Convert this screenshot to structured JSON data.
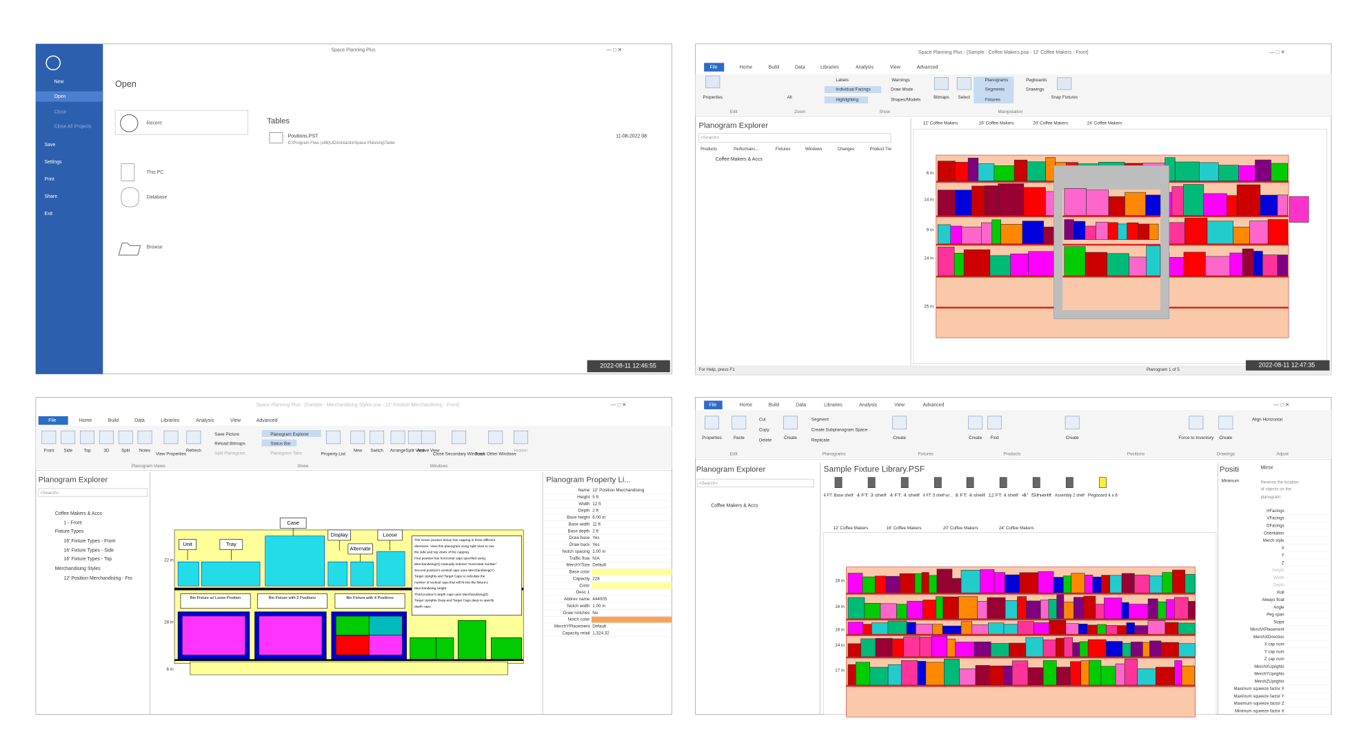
{
  "windows": [
    {
      "title": "Space Planning Plus",
      "sidebar": [
        "New",
        "Open",
        "Close",
        "Close All Projects",
        "Save",
        "Settings",
        "Print",
        "Share",
        "Exit"
      ],
      "heading": "Open",
      "locations": [
        "Recent",
        "This PC",
        "Database",
        "Browse"
      ],
      "tables_heading": "Tables",
      "file": {
        "name": "Positions.PST",
        "path": "C:\\Program Files (x86)\\JDA\\Intactix\\Space Planning\\Table",
        "date": "11-08-2022 08:"
      },
      "timestamp": "2022-08-11 12:46:55"
    },
    {
      "title": "Space Planning Plus - [Sample - Coffee Makers.psa - 12' Coffee Makers - Front]",
      "tabs": [
        "File",
        "Home",
        "Build",
        "Data",
        "Libraries",
        "Analysis",
        "View",
        "Advanced"
      ],
      "buttons": [
        "Properties",
        "Labels",
        "Warnings",
        "Individual Facings",
        "Draw Mode",
        "Highlighting",
        "Shapes/Models",
        "Bitmaps",
        "Select",
        "Planograms",
        "Pegboards",
        "Segments",
        "Drawings",
        "Fixtures",
        "Snap Fixtures",
        "All"
      ],
      "groups": [
        "Edit",
        "Zoom",
        "Show",
        "Manipulation"
      ],
      "explorer": "Planogram Explorer",
      "search": "<Search>",
      "explorer_tabs": [
        "Products",
        "Performanc...",
        "Fixtures",
        "Windows",
        "Changes",
        "Product Tre"
      ],
      "tree": [
        "Coffee Makers & Accs"
      ],
      "doc_tabs": [
        "12' Coffee Makers",
        "16' Coffee Makers",
        "20' Coffee Makers",
        "24' Coffee Makers"
      ],
      "axis_labels": [
        "6 in",
        "14 in",
        "9 in",
        "14 in",
        "25 in"
      ],
      "status": "For Help, press F1",
      "status_right": "Planogram 1 of 5",
      "timestamp": "2022-08-11 12:47:35"
    },
    {
      "title": "Space Planning Plus - [Sample - Merchandising Styles.psa - 12' Position Merchandising - Front]",
      "tabs": [
        "File",
        "Home",
        "Build",
        "Data",
        "Libraries",
        "Analysis",
        "View",
        "Advanced"
      ],
      "buttons": [
        "Front",
        "Side",
        "Top",
        "3D",
        "Split",
        "Notes",
        "View Properties",
        "Refresh",
        "Save Picture",
        "Reload Bitmaps",
        "Split Planogram",
        "Planogram Explorer",
        "Status Bar",
        "Planogram Tabs",
        "Property List",
        "New",
        "Switch",
        "Arrange",
        "Split View",
        "Active View",
        "Close Secondary Windows",
        "Track Other Windows",
        "Hidden"
      ],
      "groups": [
        "Planogram Views",
        "Show",
        "Windows"
      ],
      "explorer": "Planogram Explorer",
      "search": "<Search>",
      "tree": [
        "Coffee Makers & Accs",
        "1 - Front",
        "Fixture Types",
        "16' Fixture Types - Front",
        "16' Fixture Types - Side",
        "16' Fixture Types - Top",
        "Merchandising Styles",
        "12' Position Merchandising - Fro"
      ],
      "styles": [
        "Unit",
        "Tray",
        "Case",
        "Display",
        "Alternate",
        "Loose"
      ],
      "fixture_notes": [
        "Bin Fixture w/ Loose Position",
        "Bin Fixture with 2 Positions",
        "Bin Fixture with 4 Positions"
      ],
      "notes": [
        "The Green product below has capping in three different",
        "directions. View this planogram using Split View to see",
        "the side and top views of the capping.",
        "First position has horizontal caps specified using",
        "Merchandising(X) manually entered \"Horizontal number\"",
        "Second position's vertical caps uses Merchandising(Y)",
        "Target Uprights and Target Caps to calculate the",
        "number of vertical caps that will fit into the fixture's",
        "Merchandising Height",
        "Third position's depth caps uses Merchandising(Z)",
        "Target Uprights Deep and Target Caps deep to specify",
        "depth caps."
      ],
      "axis_labels": [
        "22 in",
        "28 in",
        "6 in"
      ],
      "property_title": "Planogram Property Li...",
      "properties": [
        {
          "name": "Name",
          "value": "12' Position Merchandising"
        },
        {
          "name": "Height",
          "value": "5 ft"
        },
        {
          "name": "Width",
          "value": "12 ft"
        },
        {
          "name": "Depth",
          "value": "2 ft"
        },
        {
          "name": "Base height",
          "value": "6.00 in"
        },
        {
          "name": "Base width",
          "value": "11 ft"
        },
        {
          "name": "Base depth",
          "value": "2 ft"
        },
        {
          "name": "Draw base",
          "value": "Yes"
        },
        {
          "name": "Draw back",
          "value": "Yes"
        },
        {
          "name": "Notch spacing",
          "value": "1.00 in"
        },
        {
          "name": "Traffic flow",
          "value": "N/A"
        },
        {
          "name": "MerchYSize",
          "value": "Default"
        },
        {
          "name": "Base color",
          "swatch": "#ffff99"
        },
        {
          "name": "Capacity",
          "value": "228"
        },
        {
          "name": "Color",
          "swatch": "#ffff99"
        },
        {
          "name": "Desc 1"
        },
        {
          "name": "Abbrev name",
          "value": "444005"
        },
        {
          "name": "Notch width",
          "value": "1.00 in"
        },
        {
          "name": "Draw notches",
          "value": "No"
        },
        {
          "name": "Notch color",
          "swatch": "#f4a460"
        },
        {
          "name": "MerchYPlacement",
          "value": "Default"
        },
        {
          "name": "Capacity retail",
          "value": "1,324.32"
        }
      ]
    },
    {
      "tabs": [
        "File",
        "Home",
        "Build",
        "Data",
        "Libraries",
        "Analysis",
        "View",
        "Advanced"
      ],
      "buttons": [
        "Properties",
        "Paste",
        "Cut",
        "Copy",
        "Delete",
        "Create",
        "Segment",
        "Create Subplanogram Space",
        "Replicate",
        "Create",
        "Create",
        "Find",
        "Create",
        "Force to Inventory",
        "Create",
        "Align Horizontal"
      ],
      "groups": [
        "Edit",
        "Planograms",
        "Fixtures",
        "Products",
        "Positions",
        "Drawings",
        "Adjust"
      ],
      "explorer": "Planogram Explorer",
      "search": "<Search>",
      "tree": [
        "Coffee Makers & Accs"
      ],
      "library": "Sample Fixture Library.PSF",
      "fixtures": [
        "4 FT: Base shelf",
        "4 FT: 3 shelf",
        "4 FT: 4 shelf",
        "4 FT: 5 shelf w/...",
        "8 FT: 4 shelf",
        "12 FT: 4 shelf",
        "4' Shelf",
        "Assembly 2 shelf",
        "Pegboard 4 x 6"
      ],
      "doc_tabs": [
        "12' Coffee Makers",
        "16' Coffee Makers",
        "20' Coffee Makers",
        "24' Coffee Makers"
      ],
      "axis_labels": [
        "16 in",
        "16 in",
        "16 in",
        "14 in",
        "17 in"
      ],
      "property_title": "Positi",
      "mirror": "Mirror",
      "minimum": "Minimum",
      "mirror_desc": [
        "Reverse the location",
        "of objects on the",
        "planogram."
      ],
      "properties": [
        "HFacings",
        "VFacings",
        "DFacings",
        "Orientation",
        "Merch style",
        "X",
        "Y",
        "Z",
        "Height",
        "Width",
        "Depth",
        "Roll",
        "Always float",
        "Angle",
        "Peg span",
        "Slope",
        "MerchXPlacement",
        "MerchXDirection",
        "X cap num",
        "Y cap num",
        "Z cap num",
        "MerchXUprights",
        "MerchYUprights",
        "MerchZUprights",
        "Maximum squeeze factor X",
        "Maximum squeeze factor Y",
        "Maximum squeeze factor Z",
        "Minimum squeeze factor X"
      ]
    }
  ]
}
